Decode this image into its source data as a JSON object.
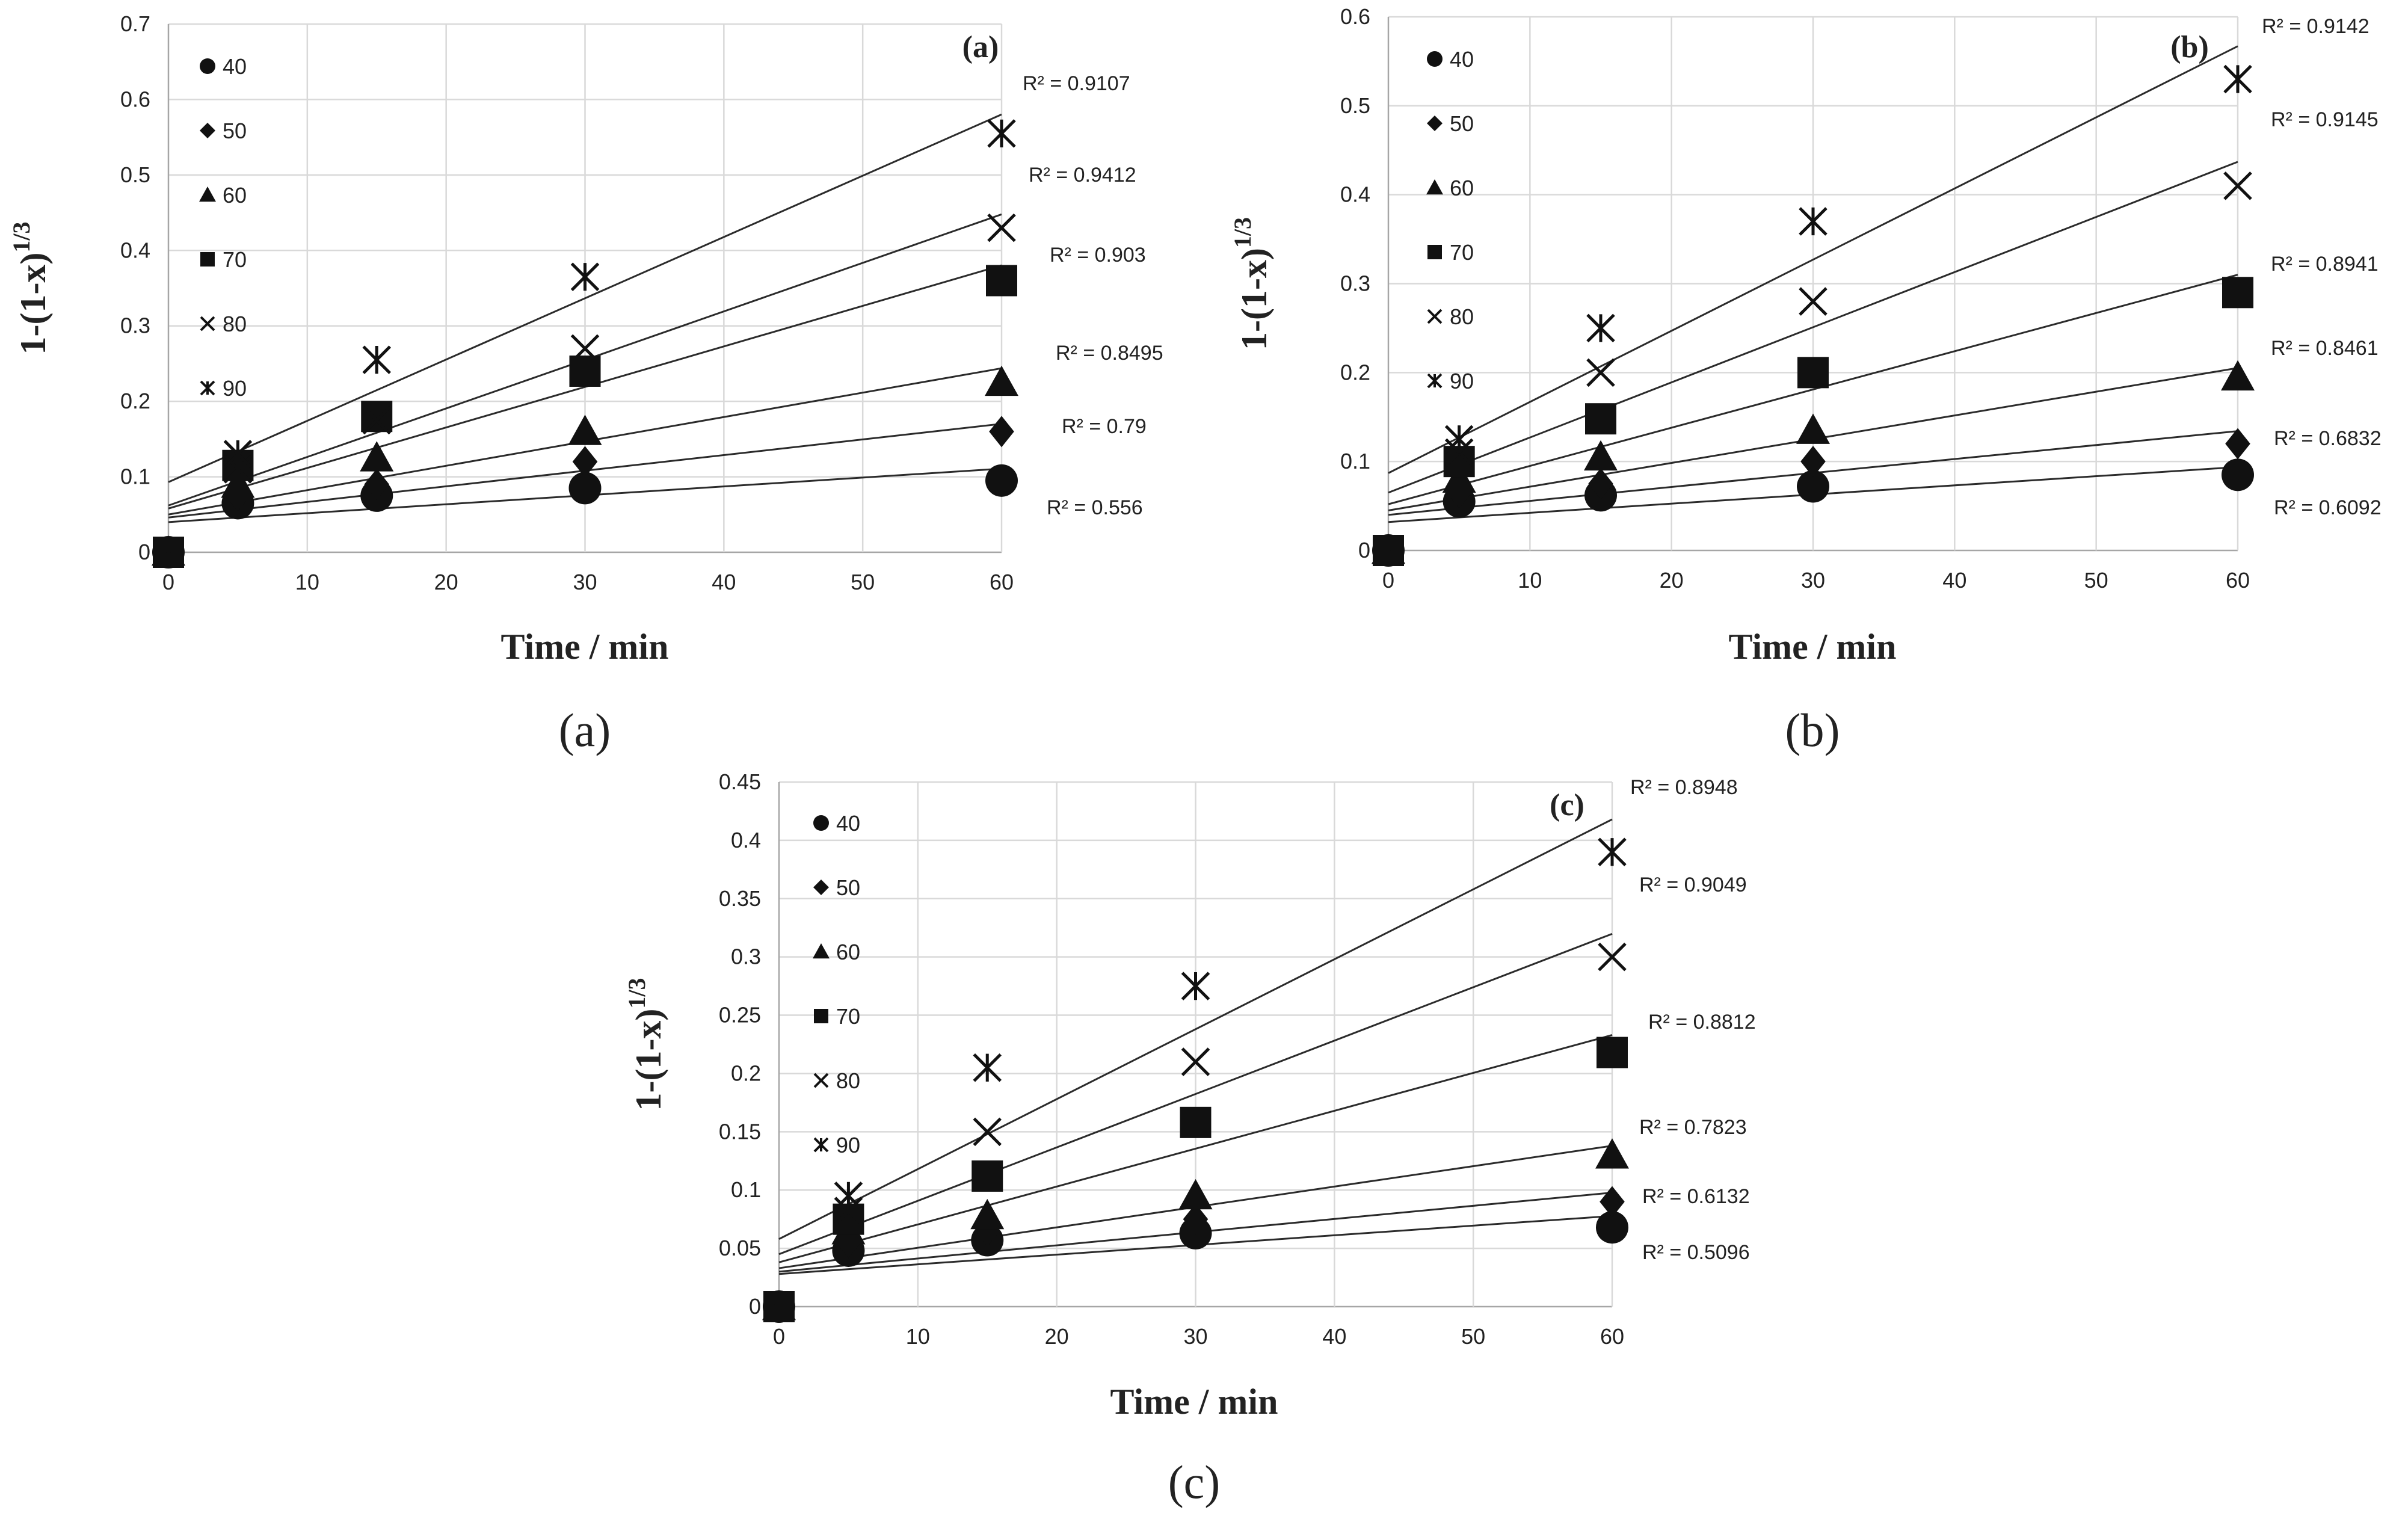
{
  "figure": {
    "captions": [
      "(a)",
      "(b)",
      "(c)"
    ]
  },
  "chart_data": [
    {
      "type": "scatter",
      "panel_label": "(a)",
      "caption": "(a)",
      "xlabel": "Time / min",
      "ylabel": "1-(1-x)",
      "ylabel_exponent": "1/3",
      "xlim": [
        0,
        60
      ],
      "ylim": [
        0,
        0.7
      ],
      "x_ticks": [
        "0",
        "10",
        "20",
        "30",
        "40",
        "50",
        "60"
      ],
      "y_ticks": [
        "0",
        "0.1",
        "0.2",
        "0.3",
        "0.4",
        "0.5",
        "0.6",
        "0.7"
      ],
      "gridlines": true,
      "legend_position": "top-left",
      "series": [
        {
          "name": "40",
          "marker": "circle",
          "x": [
            0,
            5,
            15,
            30,
            60
          ],
          "y": [
            0,
            0.065,
            0.075,
            0.085,
            0.095
          ],
          "trendline": {
            "intercept": 0.04,
            "slope": 0.00118,
            "r2_label": "R² = 0.556"
          }
        },
        {
          "name": "50",
          "marker": "diamond",
          "x": [
            0,
            5,
            15,
            30,
            60
          ],
          "y": [
            0,
            0.075,
            0.09,
            0.12,
            0.16
          ],
          "trendline": {
            "intercept": 0.046,
            "slope": 0.00207,
            "r2_label": "R² = 0.79"
          }
        },
        {
          "name": "60",
          "marker": "triangle",
          "x": [
            0,
            5,
            15,
            30,
            60
          ],
          "y": [
            0,
            0.09,
            0.125,
            0.16,
            0.225
          ],
          "trendline": {
            "intercept": 0.05,
            "slope": 0.00323,
            "r2_label": "R² = 0.8495"
          }
        },
        {
          "name": "70",
          "marker": "square",
          "x": [
            0,
            5,
            15,
            30,
            60
          ],
          "y": [
            0,
            0.115,
            0.18,
            0.24,
            0.36
          ],
          "trendline": {
            "intercept": 0.058,
            "slope": 0.00537,
            "r2_label": "R² = 0.903"
          }
        },
        {
          "name": "80",
          "marker": "x",
          "x": [
            0,
            5,
            15,
            30,
            60
          ],
          "y": [
            0,
            0.11,
            0.175,
            0.27,
            0.43
          ],
          "trendline": {
            "intercept": 0.062,
            "slope": 0.00643,
            "r2_label": "R² = 0.9412"
          }
        },
        {
          "name": "90",
          "marker": "asterisk",
          "x": [
            0,
            5,
            15,
            30,
            60
          ],
          "y": [
            0,
            0.13,
            0.255,
            0.365,
            0.555
          ],
          "trendline": {
            "intercept": 0.093,
            "slope": 0.00812,
            "r2_label": "R² = 0.9107"
          }
        }
      ]
    },
    {
      "type": "scatter",
      "panel_label": "(b)",
      "caption": "(b)",
      "xlabel": "Time / min",
      "ylabel": "1-(1-x)",
      "ylabel_exponent": "1/3",
      "xlim": [
        0,
        60
      ],
      "ylim": [
        0,
        0.6
      ],
      "x_ticks": [
        "0",
        "10",
        "20",
        "30",
        "40",
        "50",
        "60"
      ],
      "y_ticks": [
        "0",
        "0.1",
        "0.2",
        "0.3",
        "0.4",
        "0.5",
        "0.6"
      ],
      "gridlines": true,
      "legend_position": "top-left",
      "series": [
        {
          "name": "40",
          "marker": "circle",
          "x": [
            0,
            5,
            15,
            30,
            60
          ],
          "y": [
            0,
            0.055,
            0.062,
            0.072,
            0.085
          ],
          "trendline": {
            "intercept": 0.032,
            "slope": 0.00103,
            "r2_label": "R² = 0.6092"
          }
        },
        {
          "name": "50",
          "marker": "diamond",
          "x": [
            0,
            5,
            15,
            30,
            60
          ],
          "y": [
            0,
            0.065,
            0.075,
            0.1,
            0.12
          ],
          "trendline": {
            "intercept": 0.04,
            "slope": 0.00157,
            "r2_label": "R² = 0.6832"
          }
        },
        {
          "name": "60",
          "marker": "triangle",
          "x": [
            0,
            5,
            15,
            30,
            60
          ],
          "y": [
            0,
            0.08,
            0.105,
            0.135,
            0.195
          ],
          "trendline": {
            "intercept": 0.045,
            "slope": 0.00267,
            "r2_label": "R² = 0.8461"
          }
        },
        {
          "name": "70",
          "marker": "square",
          "x": [
            0,
            5,
            15,
            30,
            60
          ],
          "y": [
            0,
            0.1,
            0.148,
            0.2,
            0.29
          ],
          "trendline": {
            "intercept": 0.052,
            "slope": 0.0043,
            "r2_label": "R² = 0.8941"
          }
        },
        {
          "name": "80",
          "marker": "x",
          "x": [
            0,
            5,
            15,
            30,
            60
          ],
          "y": [
            0,
            0.11,
            0.2,
            0.28,
            0.41
          ],
          "trendline": {
            "intercept": 0.065,
            "slope": 0.0062,
            "r2_label": "R² = 0.9145"
          }
        },
        {
          "name": "90",
          "marker": "asterisk",
          "x": [
            0,
            5,
            15,
            30,
            60
          ],
          "y": [
            0,
            0.125,
            0.25,
            0.37,
            0.53
          ],
          "trendline": {
            "intercept": 0.087,
            "slope": 0.008,
            "r2_label": "R² = 0.9142"
          }
        }
      ]
    },
    {
      "type": "scatter",
      "panel_label": "(c)",
      "caption": "(c)",
      "xlabel": "Time / min",
      "ylabel": "1-(1-x)",
      "ylabel_exponent": "1/3",
      "xlim": [
        0,
        60
      ],
      "ylim": [
        0,
        0.45
      ],
      "x_ticks": [
        "0",
        "10",
        "20",
        "30",
        "40",
        "50",
        "60"
      ],
      "y_ticks": [
        "0",
        "0.05",
        "0.1",
        "0.15",
        "0.2",
        "0.25",
        "0.3",
        "0.35",
        "0.4",
        "0.45"
      ],
      "gridlines": true,
      "legend_position": "top-left",
      "series": [
        {
          "name": "40",
          "marker": "circle",
          "x": [
            0,
            5,
            15,
            30,
            60
          ],
          "y": [
            0,
            0.048,
            0.057,
            0.063,
            0.068
          ],
          "trendline": {
            "intercept": 0.028,
            "slope": 0.00083,
            "r2_label": "R² = 0.5096"
          }
        },
        {
          "name": "50",
          "marker": "diamond",
          "x": [
            0,
            5,
            15,
            30,
            60
          ],
          "y": [
            0,
            0.055,
            0.065,
            0.075,
            0.09
          ],
          "trendline": {
            "intercept": 0.03,
            "slope": 0.00113,
            "r2_label": "R² = 0.6132"
          }
        },
        {
          "name": "60",
          "marker": "triangle",
          "x": [
            0,
            5,
            15,
            30,
            60
          ],
          "y": [
            0,
            0.065,
            0.078,
            0.095,
            0.13
          ],
          "trendline": {
            "intercept": 0.033,
            "slope": 0.00175,
            "r2_label": "R² = 0.7823"
          }
        },
        {
          "name": "70",
          "marker": "square",
          "x": [
            0,
            5,
            15,
            30,
            60
          ],
          "y": [
            0,
            0.075,
            0.112,
            0.158,
            0.218
          ],
          "trendline": {
            "intercept": 0.038,
            "slope": 0.00325,
            "r2_label": "R² = 0.8812"
          }
        },
        {
          "name": "80",
          "marker": "x",
          "x": [
            0,
            5,
            15,
            30,
            60
          ],
          "y": [
            0,
            0.082,
            0.15,
            0.21,
            0.3
          ],
          "trendline": {
            "intercept": 0.045,
            "slope": 0.00458,
            "r2_label": "R² = 0.9049"
          }
        },
        {
          "name": "90",
          "marker": "asterisk",
          "x": [
            0,
            5,
            15,
            30,
            60
          ],
          "y": [
            0,
            0.095,
            0.205,
            0.275,
            0.39
          ],
          "trendline": {
            "intercept": 0.058,
            "slope": 0.006,
            "r2_label": "R² = 0.8948"
          }
        }
      ]
    }
  ]
}
